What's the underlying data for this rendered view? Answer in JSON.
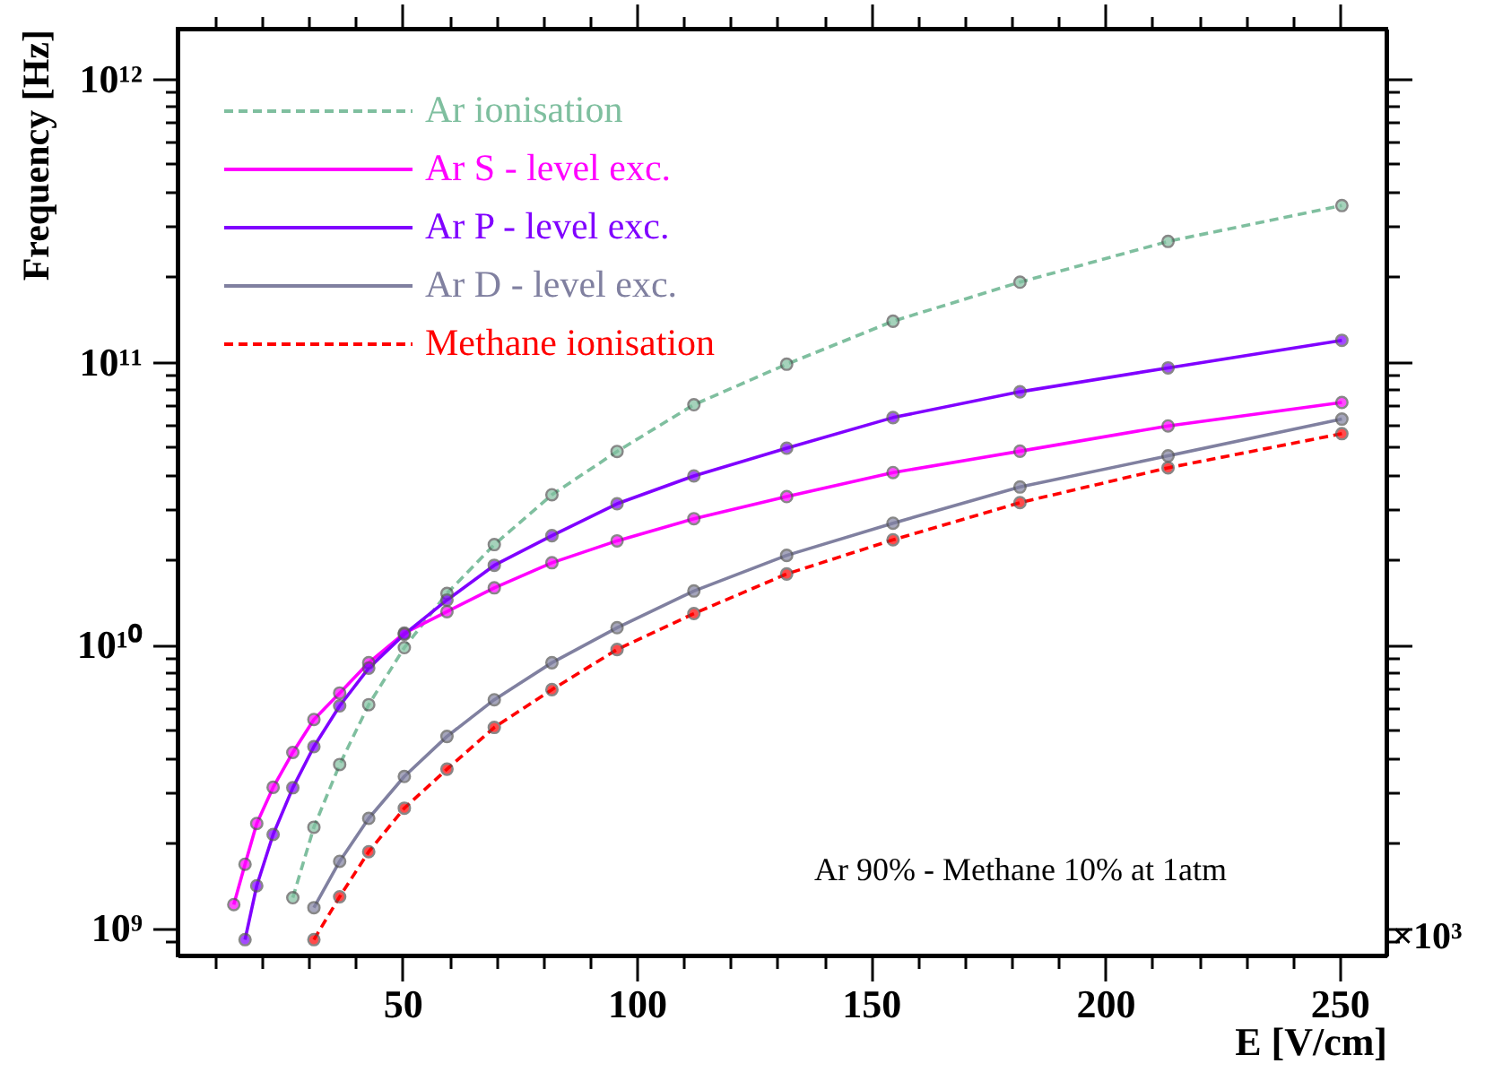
{
  "chart_data": {
    "type": "line",
    "xlabel": "E [V/cm]",
    "ylabel": "Frequency [Hz]",
    "annotations": [
      "Ar 90% - Methane 10% at 1atm",
      "×10³"
    ],
    "log": "y",
    "marker": "circle",
    "legend": "top left",
    "grid": false,
    "xlim": [
      2,
      260
    ],
    "ylim": [
      800000000.0,
      1500000000000.0
    ],
    "xticks": [
      {
        "value": 10,
        "label": null
      },
      {
        "value": 20,
        "label": null
      },
      {
        "value": 30,
        "label": null
      },
      {
        "value": 40,
        "label": null
      },
      50,
      {
        "value": 60,
        "label": null
      },
      {
        "value": 70,
        "label": null
      },
      {
        "value": 80,
        "label": null
      },
      {
        "value": 90,
        "label": null
      },
      100,
      {
        "value": 110,
        "label": null
      },
      {
        "value": 120,
        "label": null
      },
      {
        "value": 130,
        "label": null
      },
      {
        "value": 140,
        "label": null
      },
      150,
      {
        "value": 160,
        "label": null
      },
      {
        "value": 170,
        "label": null
      },
      {
        "value": 180,
        "label": null
      },
      {
        "value": 190,
        "label": null
      },
      200,
      {
        "value": 210,
        "label": null
      },
      {
        "value": 220,
        "label": null
      },
      {
        "value": 230,
        "label": null
      },
      {
        "value": 240,
        "label": null
      },
      250
    ],
    "yticks": [
      {
        "value": 900000000.0,
        "label": null
      },
      {
        "value": 1000000000.0,
        "label": "10⁹"
      },
      {
        "value": 2000000000.0,
        "label": null
      },
      {
        "value": 3000000000.0,
        "label": null
      },
      {
        "value": 4000000000.0,
        "label": null
      },
      {
        "value": 5000000000.0,
        "label": null
      },
      {
        "value": 6000000000.0,
        "label": null
      },
      {
        "value": 7000000000.0,
        "label": null
      },
      {
        "value": 8000000000.0,
        "label": null
      },
      {
        "value": 9000000000.0,
        "label": null
      },
      {
        "value": 10000000000.0,
        "label": "10¹⁰"
      },
      {
        "value": 20000000000.0,
        "label": null
      },
      {
        "value": 30000000000.0,
        "label": null
      },
      {
        "value": 40000000000.0,
        "label": null
      },
      {
        "value": 50000000000.0,
        "label": null
      },
      {
        "value": 60000000000.0,
        "label": null
      },
      {
        "value": 70000000000.0,
        "label": null
      },
      {
        "value": 80000000000.0,
        "label": null
      },
      {
        "value": 90000000000.0,
        "label": null
      },
      {
        "value": 100000000000.0,
        "label": "10¹¹"
      },
      {
        "value": 200000000000.0,
        "label": null
      },
      {
        "value": 300000000000.0,
        "label": null
      },
      {
        "value": 400000000000.0,
        "label": null
      },
      {
        "value": 500000000000.0,
        "label": null
      },
      {
        "value": 600000000000.0,
        "label": null
      },
      {
        "value": 700000000000.0,
        "label": null
      },
      {
        "value": 800000000000.0,
        "label": null
      },
      {
        "value": 900000000000.0,
        "label": null
      },
      {
        "value": 1000000000000.0,
        "label": "10¹²"
      }
    ],
    "series": [
      {
        "name": "Ar ionisation",
        "color": "#7fbf9f",
        "line_style": "dashed",
        "x": [
          26.6,
          31.1,
          36.6,
          42.8,
          50.4,
          59.5,
          69.6,
          81.9,
          95.8,
          112.2,
          132,
          154.7,
          181.8,
          213.4,
          250.5
        ],
        "values": [
          1280000000.0,
          2270000000.0,
          3780000000.0,
          6150000000.0,
          9780000000.0,
          15200000000.0,
          22600000000.0,
          33900000000.0,
          48200000000.0,
          70500000000.0,
          98000000000.0,
          139000000000.0,
          191000000000.0,
          266000000000.0,
          356000000000.0
        ]
      },
      {
        "name": "Ar S - level exc.",
        "color": "#ff00ff",
        "line_style": "solid",
        "x": [
          14.0,
          16.4,
          18.9,
          22.4,
          26.6,
          31.1,
          36.6,
          42.8,
          50.4,
          59.5,
          69.6,
          81.9,
          95.8,
          112.2,
          132,
          154.7,
          181.8,
          213.4,
          250.5
        ],
        "values": [
          1210000000.0,
          1680000000.0,
          2340000000.0,
          3140000000.0,
          4170000000.0,
          5450000000.0,
          6760000000.0,
          8650000000.0,
          11000000000.0,
          13100000000.0,
          15900000000.0,
          19500000000.0,
          23300000000.0,
          27900000000.0,
          33400000000.0,
          40600000000.0,
          48300000000.0,
          59300000000.0,
          71800000000.0
        ]
      },
      {
        "name": "Ar P - level exc.",
        "color": "#8000ff",
        "line_style": "solid",
        "x": [
          16.4,
          18.9,
          22.4,
          26.6,
          31.1,
          36.6,
          42.8,
          50.4,
          59.5,
          69.6,
          81.9,
          95.8,
          112.2,
          132,
          154.7,
          181.8,
          213.4,
          250.5
        ],
        "values": [
          910000000.0,
          1410000000.0,
          2140000000.0,
          3130000000.0,
          4370000000.0,
          6090000000.0,
          8280000000.0,
          10900000000.0,
          14400000000.0,
          19100000000.0,
          24300000000.0,
          31500000000.0,
          39500000000.0,
          49500000000.0,
          63500000000.0,
          78300000000.0,
          95100000000.0,
          119000000000.0
        ]
      },
      {
        "name": "Ar D - level exc.",
        "color": "#8080a0",
        "line_style": "solid",
        "x": [
          31.1,
          36.6,
          42.8,
          50.4,
          59.5,
          69.6,
          81.9,
          95.8,
          112.2,
          132,
          154.7,
          181.8,
          213.4,
          250.5
        ],
        "values": [
          1180000000.0,
          1720000000.0,
          2440000000.0,
          3430000000.0,
          4750000000.0,
          6400000000.0,
          8650000000.0,
          11500000000.0,
          15500000000.0,
          20700000000.0,
          26900000000.0,
          36100000000.0,
          46500000000.0,
          62700000000.0
        ]
      },
      {
        "name": "Methane ionisation",
        "color": "#ff0000",
        "line_style": "dashed",
        "x": [
          31.1,
          36.6,
          42.8,
          50.4,
          59.5,
          69.6,
          81.9,
          95.8,
          112.2,
          132,
          154.7,
          181.8,
          213.4,
          250.5
        ],
        "values": [
          910000000.0,
          1290000000.0,
          1860000000.0,
          2650000000.0,
          3640000000.0,
          5110000000.0,
          6950000000.0,
          9630000000.0,
          12900000000.0,
          17800000000.0,
          23500000000.0,
          31800000000.0,
          42200000000.0,
          55700000000.0
        ]
      }
    ]
  }
}
